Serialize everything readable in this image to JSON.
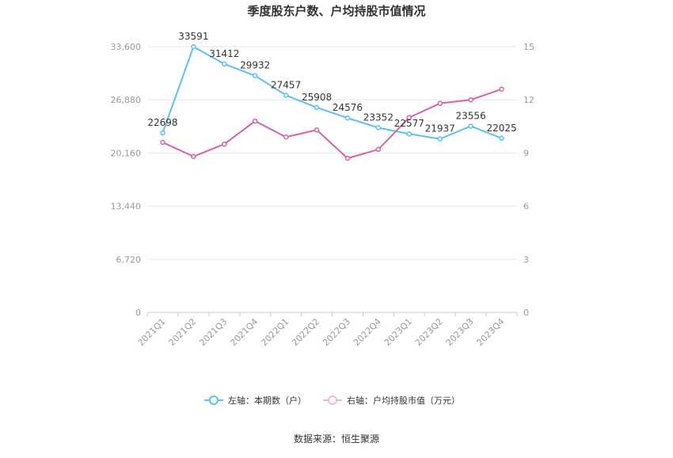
{
  "chart_data": {
    "type": "line",
    "title": "季度股东户数、户均持股市值情况",
    "source": "数据来源：恒生聚源",
    "categories": [
      "2021Q1",
      "2021Q2",
      "2021Q3",
      "2021Q4",
      "2022Q1",
      "2022Q2",
      "2022Q3",
      "2022Q4",
      "2023Q1",
      "2023Q2",
      "2023Q3",
      "2023Q4"
    ],
    "left_axis": {
      "min": 0,
      "max": 33600,
      "ticks": [
        0,
        6720,
        13440,
        20160,
        26880,
        33600
      ],
      "tick_labels": [
        "0",
        "6,720",
        "13,440",
        "20,160",
        "26,880",
        "33,600"
      ]
    },
    "right_axis": {
      "min": 0,
      "max": 15,
      "ticks": [
        0,
        3,
        6,
        9,
        12,
        15
      ],
      "tick_labels": [
        "0",
        "3",
        "6",
        "9",
        "12",
        "15"
      ]
    },
    "series": [
      {
        "name": "左轴：本期数（户）",
        "axis": "left",
        "color": "#5bc0eb",
        "values": [
          22698,
          33591,
          31412,
          29932,
          27457,
          25908,
          24576,
          23352,
          22577,
          21937,
          23556,
          22025
        ],
        "labels": [
          "22698",
          "33591",
          "31412",
          "29932",
          "27457",
          "25908",
          "24576",
          "23352",
          "22577",
          "21937",
          "23556",
          "22025"
        ]
      },
      {
        "name": "右轴：户均持股市值（万元）",
        "axis": "right",
        "color": "#d064a8",
        "values": [
          9.6,
          8.8,
          9.5,
          10.8,
          9.9,
          10.3,
          8.7,
          9.2,
          11.0,
          11.8,
          12.0,
          12.6
        ]
      }
    ],
    "grid": true,
    "legend_position": "bottom"
  }
}
